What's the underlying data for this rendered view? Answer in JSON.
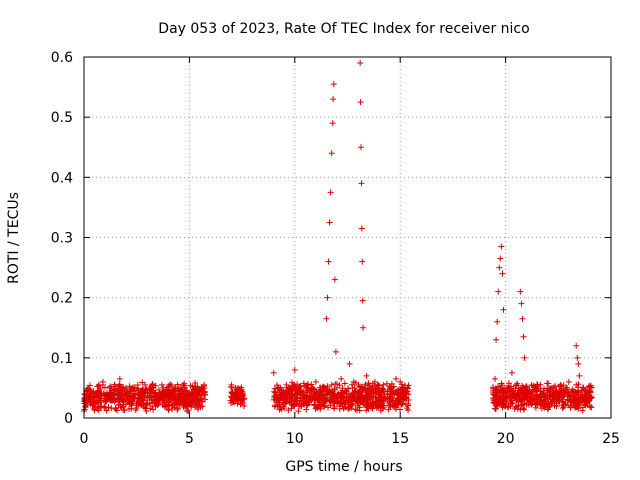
{
  "chart_data": {
    "type": "scatter",
    "title": "Day 053 of 2023, Rate Of TEC Index for receiver nico",
    "xlabel": "GPS time / hours",
    "ylabel": "ROTI / TECUs",
    "xlim": [
      0,
      25
    ],
    "ylim": [
      0,
      0.6
    ],
    "xticks": [
      0,
      5,
      10,
      15,
      20,
      25
    ],
    "xtick_labels": [
      "0",
      "5",
      "10",
      "15",
      "20",
      "25"
    ],
    "yticks": [
      0,
      0.1,
      0.2,
      0.3,
      0.4,
      0.5,
      0.6
    ],
    "ytick_labels": [
      "0",
      "0.1",
      "0.2",
      "0.3",
      "0.4",
      "0.5",
      "0.6"
    ],
    "grid": true,
    "marker": "plus",
    "color": "#e00000",
    "series": [
      {
        "points": [
          [
            0.1,
            0.03
          ],
          [
            0.3,
            0.045
          ],
          [
            0.5,
            0.025
          ],
          [
            0.7,
            0.055
          ],
          [
            0.9,
            0.06
          ],
          [
            1.1,
            0.035
          ],
          [
            1.3,
            0.05
          ],
          [
            1.5,
            0.03
          ],
          [
            1.7,
            0.065
          ],
          [
            1.9,
            0.04
          ],
          [
            2.1,
            0.03
          ],
          [
            2.3,
            0.05
          ],
          [
            2.5,
            0.025
          ],
          [
            2.7,
            0.045
          ],
          [
            2.9,
            0.055
          ],
          [
            3.1,
            0.035
          ],
          [
            3.3,
            0.05
          ],
          [
            3.5,
            0.03
          ],
          [
            3.7,
            0.055
          ],
          [
            3.9,
            0.04
          ],
          [
            4.1,
            0.03
          ],
          [
            4.3,
            0.05
          ],
          [
            4.5,
            0.035
          ],
          [
            4.7,
            0.055
          ],
          [
            4.9,
            0.04
          ],
          [
            5.1,
            0.03
          ],
          [
            5.3,
            0.05
          ],
          [
            5.5,
            0.045
          ],
          [
            5.7,
            0.055
          ],
          [
            7.0,
            0.055
          ],
          [
            7.1,
            0.035
          ],
          [
            7.3,
            0.045
          ],
          [
            7.5,
            0.03
          ],
          [
            7.6,
            0.02
          ],
          [
            9.0,
            0.075
          ],
          [
            9.2,
            0.05
          ],
          [
            9.4,
            0.035
          ],
          [
            9.6,
            0.055
          ],
          [
            9.8,
            0.04
          ],
          [
            10.0,
            0.08
          ],
          [
            10.2,
            0.05
          ],
          [
            10.4,
            0.035
          ],
          [
            10.6,
            0.055
          ],
          [
            10.8,
            0.045
          ],
          [
            11.0,
            0.06
          ],
          [
            11.2,
            0.04
          ],
          [
            11.4,
            0.05
          ],
          [
            11.5,
            0.165
          ],
          [
            11.55,
            0.2
          ],
          [
            11.6,
            0.26
          ],
          [
            11.65,
            0.325
          ],
          [
            11.7,
            0.375
          ],
          [
            11.75,
            0.44
          ],
          [
            11.8,
            0.49
          ],
          [
            11.82,
            0.53
          ],
          [
            11.85,
            0.555
          ],
          [
            11.9,
            0.23
          ],
          [
            11.95,
            0.11
          ],
          [
            12.0,
            0.05
          ],
          [
            12.2,
            0.065
          ],
          [
            12.4,
            0.045
          ],
          [
            12.6,
            0.09
          ],
          [
            12.8,
            0.06
          ],
          [
            13.1,
            0.59
          ],
          [
            13.12,
            0.525
          ],
          [
            13.14,
            0.45
          ],
          [
            13.16,
            0.39
          ],
          [
            13.18,
            0.315
          ],
          [
            13.2,
            0.26
          ],
          [
            13.22,
            0.195
          ],
          [
            13.24,
            0.15
          ],
          [
            13.4,
            0.07
          ],
          [
            13.6,
            0.05
          ],
          [
            13.8,
            0.06
          ],
          [
            14.0,
            0.04
          ],
          [
            14.2,
            0.055
          ],
          [
            14.4,
            0.045
          ],
          [
            14.6,
            0.05
          ],
          [
            14.8,
            0.065
          ],
          [
            15.0,
            0.06
          ],
          [
            15.2,
            0.035
          ],
          [
            15.4,
            0.03
          ],
          [
            19.4,
            0.045
          ],
          [
            19.5,
            0.065
          ],
          [
            19.55,
            0.13
          ],
          [
            19.6,
            0.16
          ],
          [
            19.65,
            0.21
          ],
          [
            19.7,
            0.25
          ],
          [
            19.75,
            0.265
          ],
          [
            19.8,
            0.285
          ],
          [
            19.85,
            0.24
          ],
          [
            19.9,
            0.18
          ],
          [
            20.0,
            0.04
          ],
          [
            20.3,
            0.075
          ],
          [
            20.5,
            0.055
          ],
          [
            20.7,
            0.21
          ],
          [
            20.75,
            0.19
          ],
          [
            20.8,
            0.165
          ],
          [
            20.85,
            0.135
          ],
          [
            20.9,
            0.1
          ],
          [
            21.0,
            0.045
          ],
          [
            21.2,
            0.035
          ],
          [
            21.4,
            0.05
          ],
          [
            21.6,
            0.03
          ],
          [
            21.8,
            0.045
          ],
          [
            22.0,
            0.035
          ],
          [
            22.2,
            0.05
          ],
          [
            22.4,
            0.03
          ],
          [
            22.6,
            0.055
          ],
          [
            22.8,
            0.04
          ],
          [
            23.0,
            0.06
          ],
          [
            23.2,
            0.045
          ],
          [
            23.35,
            0.12
          ],
          [
            23.4,
            0.1
          ],
          [
            23.45,
            0.09
          ],
          [
            23.5,
            0.07
          ],
          [
            23.7,
            0.05
          ],
          [
            23.9,
            0.03
          ],
          [
            24.0,
            0.02
          ]
        ],
        "dense_bands": [
          {
            "x": [
              0.0,
              5.75
            ],
            "y": [
              0.01,
              0.06
            ]
          },
          {
            "x": [
              6.95,
              7.6
            ],
            "y": [
              0.02,
              0.055
            ]
          },
          {
            "x": [
              9.0,
              15.4
            ],
            "y": [
              0.01,
              0.06
            ]
          },
          {
            "x": [
              19.4,
              24.1
            ],
            "y": [
              0.01,
              0.06
            ]
          }
        ]
      }
    ]
  }
}
